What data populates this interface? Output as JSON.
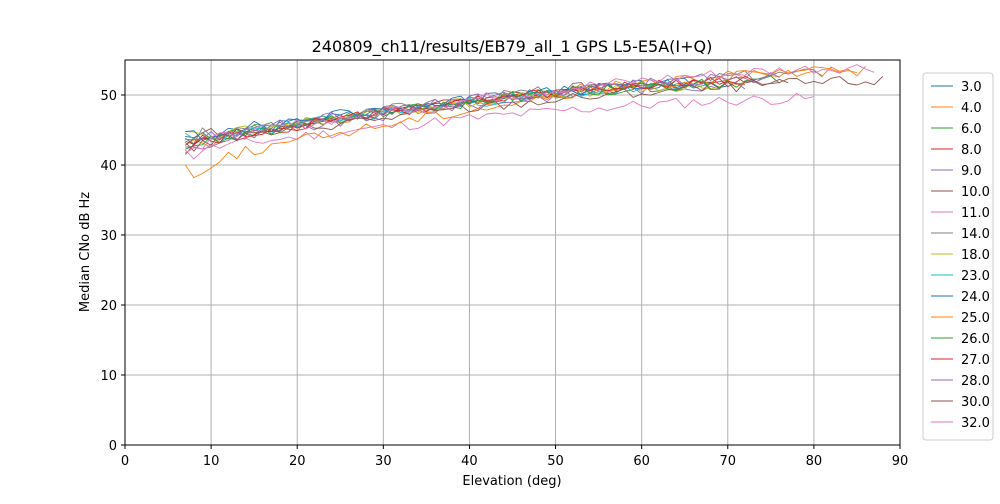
{
  "chart_data": {
    "type": "line",
    "title": "240809_ch11/results/EB79_all_1 GPS L5-E5A(I+Q)",
    "xlabel": "Elevation (deg)",
    "ylabel": "Median CNo dB Hz",
    "xlim": [
      0,
      90
    ],
    "ylim": [
      0,
      55
    ],
    "x_ticks": [
      0,
      10,
      20,
      30,
      40,
      50,
      60,
      70,
      80,
      90
    ],
    "y_ticks": [
      0,
      10,
      20,
      30,
      40,
      50
    ],
    "grid": true,
    "legend_position": "right",
    "series": [
      {
        "name": "3.0",
        "color": "#1f77b4",
        "start": 7,
        "end": 70,
        "y_start": 43.5,
        "y_end": 51.8,
        "seed": 3
      },
      {
        "name": "4.0",
        "color": "#ff7f0e",
        "start": 7,
        "end": 86,
        "y_start": 43.0,
        "y_end": 53.5,
        "seed": 4
      },
      {
        "name": "6.0",
        "color": "#2ca02c",
        "start": 7,
        "end": 76,
        "y_start": 43.5,
        "y_end": 52.0,
        "seed": 6
      },
      {
        "name": "8.0",
        "color": "#d62728",
        "start": 7,
        "end": 73,
        "y_start": 43.0,
        "y_end": 52.0,
        "seed": 8
      },
      {
        "name": "9.0",
        "color": "#9467bd",
        "start": 7,
        "end": 72,
        "y_start": 42.5,
        "y_end": 51.5,
        "seed": 9
      },
      {
        "name": "10.0",
        "color": "#8c564b",
        "start": 7,
        "end": 77,
        "y_start": 43.5,
        "y_end": 52.2,
        "seed": 10
      },
      {
        "name": "11.0",
        "color": "#e377c2",
        "start": 7,
        "end": 80,
        "y_start": 42.0,
        "y_end": 49.5,
        "seed": 11
      },
      {
        "name": "14.0",
        "color": "#7f7f7f",
        "start": 7,
        "end": 81,
        "y_start": 43.5,
        "y_end": 53.0,
        "seed": 14
      },
      {
        "name": "18.0",
        "color": "#bcbd22",
        "start": 7,
        "end": 72,
        "y_start": 43.5,
        "y_end": 51.5,
        "seed": 18
      },
      {
        "name": "23.0",
        "color": "#17becf",
        "start": 7,
        "end": 65,
        "y_start": 43.0,
        "y_end": 51.0,
        "seed": 23
      },
      {
        "name": "24.0",
        "color": "#1f77b4",
        "start": 7,
        "end": 68,
        "y_start": 44.0,
        "y_end": 51.5,
        "seed": 24
      },
      {
        "name": "25.0",
        "color": "#ff7f0e",
        "start": 7,
        "end": 85,
        "y_start": 40.0,
        "y_end": 53.5,
        "seed": 25
      },
      {
        "name": "26.0",
        "color": "#2ca02c",
        "start": 7,
        "end": 70,
        "y_start": 43.0,
        "y_end": 51.6,
        "seed": 26
      },
      {
        "name": "27.0",
        "color": "#d62728",
        "start": 7,
        "end": 72,
        "y_start": 43.0,
        "y_end": 51.8,
        "seed": 27
      },
      {
        "name": "28.0",
        "color": "#9467bd",
        "start": 7,
        "end": 76,
        "y_start": 43.5,
        "y_end": 52.5,
        "seed": 28
      },
      {
        "name": "30.0",
        "color": "#8c564b",
        "start": 7,
        "end": 88,
        "y_start": 43.0,
        "y_end": 52.0,
        "seed": 30
      },
      {
        "name": "32.0",
        "color": "#e377c2",
        "start": 7,
        "end": 87,
        "y_start": 43.0,
        "y_end": 54.0,
        "seed": 32
      }
    ]
  }
}
